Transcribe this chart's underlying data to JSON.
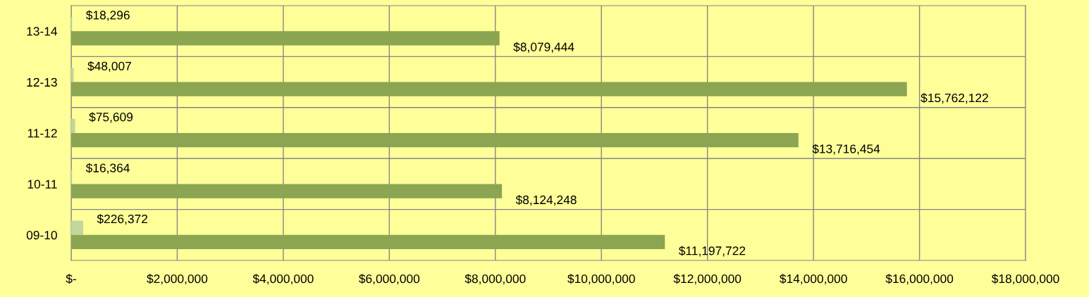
{
  "chart_data": {
    "type": "bar",
    "orientation": "horizontal",
    "categories": [
      "13-14",
      "12-13",
      "11-12",
      "10-11",
      "09-10"
    ],
    "series": [
      {
        "color": "#c3d69b",
        "values": [
          18296,
          48007,
          75609,
          16364,
          226372
        ],
        "value_labels": [
          "$18,296",
          "$48,007",
          "$75,609",
          "$16,364",
          "$226,372"
        ]
      },
      {
        "color": "#8ba552",
        "values": [
          8079444,
          15762122,
          13716454,
          8124248,
          11197722
        ],
        "value_labels": [
          "$8,079,444",
          "$15,762,122",
          "$13,716,454",
          "$8,124,248",
          "$11,197,722"
        ]
      }
    ],
    "xlim": [
      0,
      18000000
    ],
    "xticks": [
      {
        "value": 0,
        "label": "$-"
      },
      {
        "value": 2000000,
        "label": "$2,000,000"
      },
      {
        "value": 4000000,
        "label": "$4,000,000"
      },
      {
        "value": 6000000,
        "label": "$6,000,000"
      },
      {
        "value": 8000000,
        "label": "$8,000,000"
      },
      {
        "value": 10000000,
        "label": "$10,000,000"
      },
      {
        "value": 12000000,
        "label": "$12,000,000"
      },
      {
        "value": 14000000,
        "label": "$14,000,000"
      },
      {
        "value": 16000000,
        "label": "$16,000,000"
      },
      {
        "value": 18000000,
        "label": "$18,000,000"
      }
    ],
    "grid": true,
    "legend": false
  }
}
